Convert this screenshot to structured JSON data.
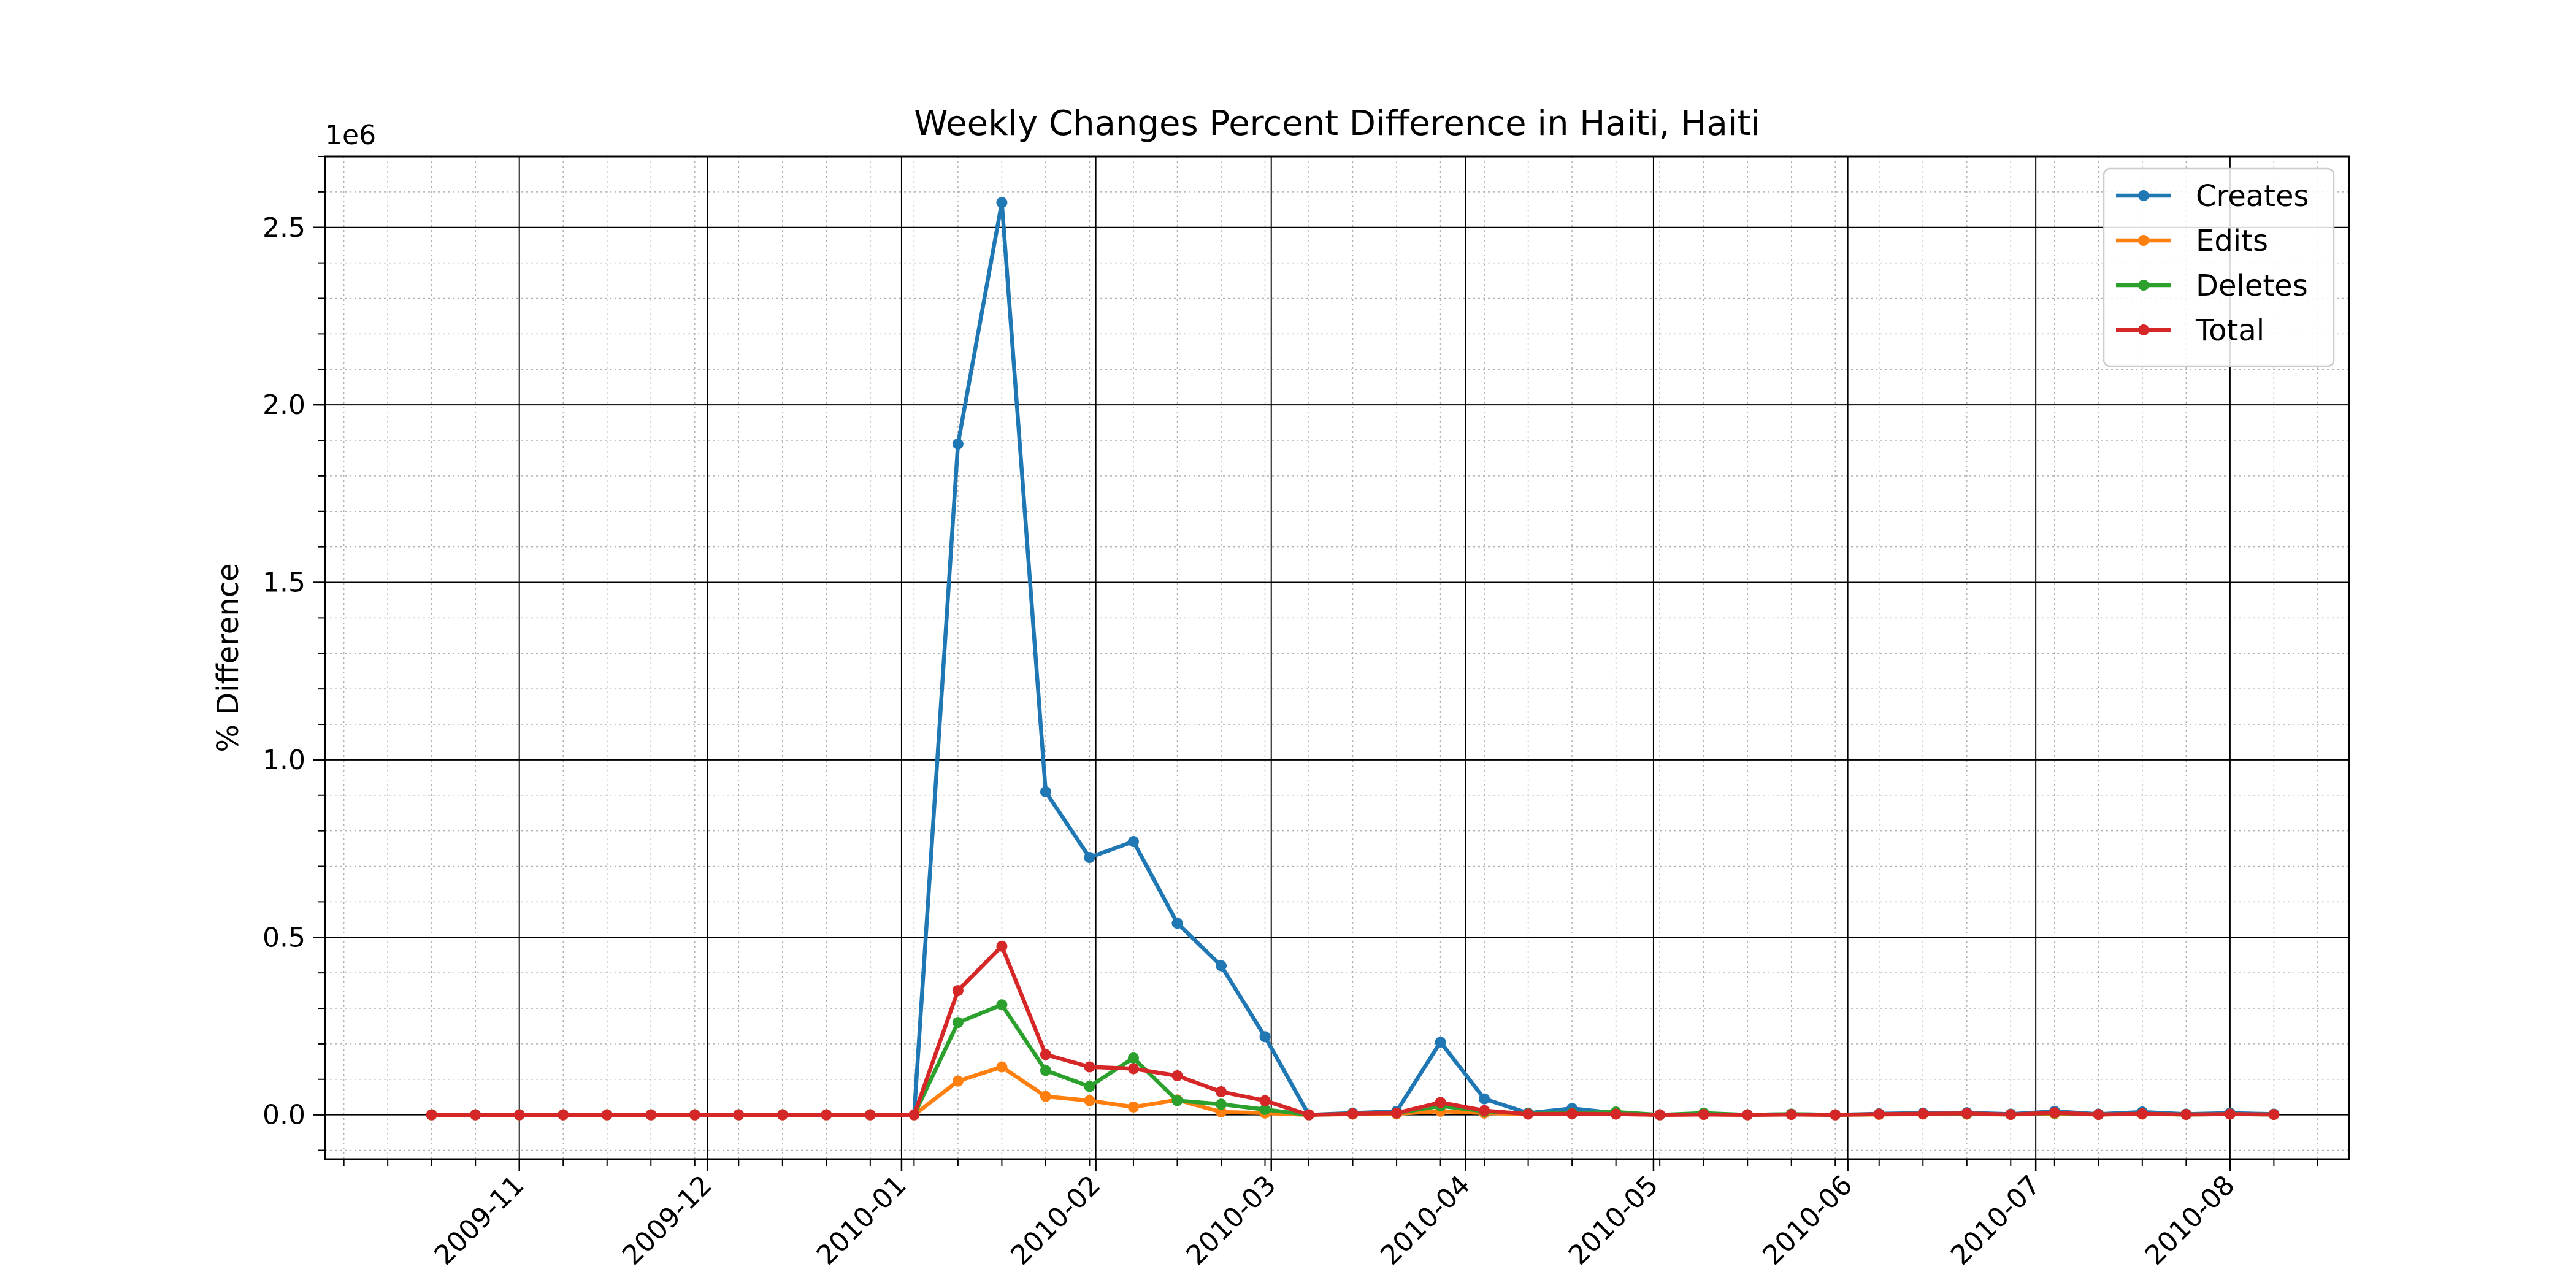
{
  "chart_data": {
    "type": "line",
    "title": "Weekly Changes Percent Difference in Haiti, Haiti",
    "xlabel": "",
    "ylabel": "% Difference",
    "y_offset_label": "1e6",
    "y_scale_factor": 1000000,
    "ylim": [
      -125000,
      2700000
    ],
    "xlim": [
      "2009-10-01",
      "2010-08-20"
    ],
    "grid": "major solid, minor dotted",
    "legend_position": "top-right",
    "x_ticks": [
      "2009-11",
      "2009-12",
      "2010-01",
      "2010-02",
      "2010-03",
      "2010-04",
      "2010-05",
      "2010-06",
      "2010-07",
      "2010-08"
    ],
    "y_ticks": [
      "0.0",
      "0.5",
      "1.0",
      "1.5",
      "2.0",
      "2.5"
    ],
    "x": [
      "2009-10-18",
      "2009-10-25",
      "2009-11-01",
      "2009-11-08",
      "2009-11-15",
      "2009-11-22",
      "2009-11-29",
      "2009-12-06",
      "2009-12-13",
      "2009-12-20",
      "2009-12-27",
      "2010-01-03",
      "2010-01-10",
      "2010-01-17",
      "2010-01-24",
      "2010-01-31",
      "2010-02-07",
      "2010-02-14",
      "2010-02-21",
      "2010-02-28",
      "2010-03-07",
      "2010-03-14",
      "2010-03-21",
      "2010-03-28",
      "2010-04-04",
      "2010-04-11",
      "2010-04-18",
      "2010-04-25",
      "2010-05-02",
      "2010-05-09",
      "2010-05-16",
      "2010-05-23",
      "2010-05-30",
      "2010-06-06",
      "2010-06-13",
      "2010-06-20",
      "2010-06-27",
      "2010-07-04",
      "2010-07-11",
      "2010-07-18",
      "2010-07-25",
      "2010-08-01",
      "2010-08-08"
    ],
    "series": [
      {
        "name": "Creates",
        "color": "#1f77b4",
        "values": [
          0,
          0,
          0,
          0,
          0,
          0,
          0,
          0,
          0,
          0,
          0,
          0,
          1890000,
          2570000,
          910000,
          725000,
          770000,
          540000,
          420000,
          220000,
          0,
          5000,
          10000,
          205000,
          45000,
          5000,
          18000,
          5000,
          0,
          3000,
          0,
          2000,
          0,
          3000,
          5000,
          6000,
          2000,
          10000,
          2000,
          8000,
          2000,
          5000,
          2000
        ]
      },
      {
        "name": "Edits",
        "color": "#ff7f0e",
        "values": [
          0,
          0,
          0,
          0,
          0,
          0,
          0,
          0,
          0,
          0,
          0,
          0,
          95000,
          135000,
          52000,
          40000,
          22000,
          42000,
          8000,
          5000,
          0,
          2000,
          3000,
          10000,
          5000,
          2000,
          3000,
          2000,
          0,
          1000,
          0,
          1000,
          0,
          1000,
          2000,
          2000,
          1000,
          3000,
          1000,
          2000,
          1000,
          2000,
          1000
        ]
      },
      {
        "name": "Deletes",
        "color": "#2ca02c",
        "values": [
          0,
          0,
          0,
          0,
          0,
          0,
          0,
          0,
          0,
          0,
          0,
          0,
          260000,
          310000,
          125000,
          80000,
          160000,
          40000,
          30000,
          15000,
          0,
          3000,
          5000,
          25000,
          10000,
          3000,
          5000,
          8000,
          0,
          5000,
          0,
          2000,
          0,
          2000,
          3000,
          3000,
          1000,
          5000,
          1000,
          3000,
          1000,
          2000,
          1000
        ]
      },
      {
        "name": "Total",
        "color": "#d62728",
        "values": [
          0,
          0,
          0,
          0,
          0,
          0,
          0,
          0,
          0,
          0,
          0,
          0,
          350000,
          475000,
          170000,
          135000,
          130000,
          110000,
          65000,
          40000,
          0,
          3000,
          5000,
          35000,
          12000,
          2000,
          3000,
          2000,
          0,
          1000,
          0,
          1000,
          0,
          2000,
          3000,
          4000,
          1000,
          6000,
          1000,
          3000,
          1000,
          2000,
          1000
        ]
      }
    ]
  }
}
